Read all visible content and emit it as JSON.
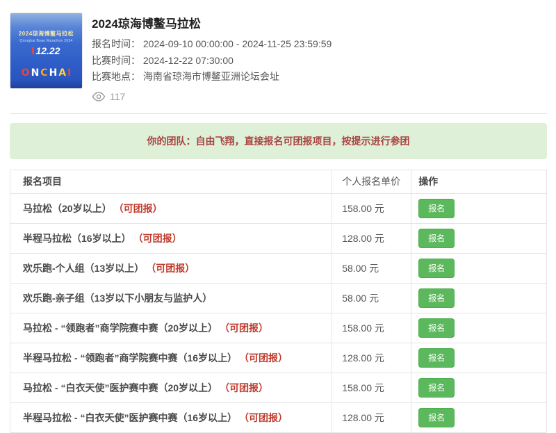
{
  "event": {
    "title": "2024琼海博鳌马拉松",
    "fields": [
      {
        "label": "报名时间：",
        "value": "2024-09-10 00:00:00 - 2024-11-25 23:59:59"
      },
      {
        "label": "比赛时间：",
        "value": "2024-12-22 07:30:00"
      },
      {
        "label": "比赛地点：",
        "value": "海南省琼海市博鳌亚洲论坛会址"
      }
    ],
    "views": "117",
    "poster": {
      "line1": "2024琼海博鳌马拉松",
      "line2": "Qionghai Boao Marathon 2024",
      "date": "12.22",
      "letters": [
        {
          "ch": "O",
          "color": "#e8463c"
        },
        {
          "ch": "N",
          "color": "#ffffff"
        },
        {
          "ch": "C",
          "color": "#f6a623"
        },
        {
          "ch": "H",
          "color": "#ffffff"
        },
        {
          "ch": "A",
          "color": "#ffce3f"
        },
        {
          "ch": "I",
          "color": "#e8463c"
        }
      ]
    }
  },
  "team_banner": {
    "text": "你的团队：自由飞翔，直接报名可团报项目，按提示进行参团"
  },
  "table": {
    "headers": [
      "报名项目",
      "个人报名单价",
      "操作"
    ],
    "action_label": "报名",
    "rows": [
      {
        "name": "马拉松（20岁以上）",
        "tag": "（可团报）",
        "price": "158.00 元"
      },
      {
        "name": "半程马拉松（16岁以上）",
        "tag": "（可团报）",
        "price": "128.00 元"
      },
      {
        "name": "欢乐跑-个人组（13岁以上）",
        "tag": "（可团报）",
        "price": "58.00 元"
      },
      {
        "name": "欢乐跑-亲子组（13岁以下小朋友与监护人）",
        "tag": "",
        "price": "58.00 元"
      },
      {
        "name": "马拉松 - “领跑者”商学院赛中赛（20岁以上）",
        "tag": "（可团报）",
        "price": "158.00 元"
      },
      {
        "name": "半程马拉松 - “领跑者”商学院赛中赛（16岁以上）",
        "tag": "（可团报）",
        "price": "128.00 元"
      },
      {
        "name": "马拉松 - “白衣天使”医护赛中赛（20岁以上）",
        "tag": "（可团报）",
        "price": "158.00 元"
      },
      {
        "name": "半程马拉松 - “白衣天使”医护赛中赛（16岁以上）",
        "tag": "（可团报）",
        "price": "128.00 元"
      }
    ]
  },
  "colors": {
    "button_green": "#5cb85c",
    "banner_bg": "#dff0d8",
    "banner_text": "#a94442",
    "tag_red": "#c0392b"
  }
}
